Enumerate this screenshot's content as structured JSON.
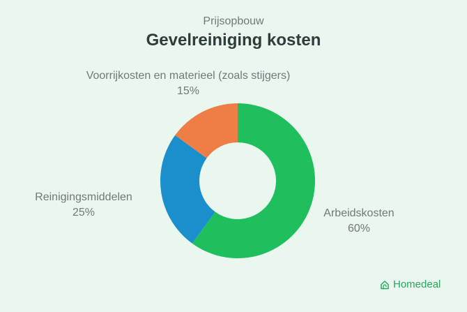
{
  "header": {
    "subtitle": "Prijsopbouw",
    "title": "Gevelreiniging kosten"
  },
  "brand": {
    "name": "Homedeal",
    "icon": "house-icon",
    "color": "#27a85a"
  },
  "chart_data": {
    "type": "pie",
    "variant": "donut",
    "title": "Gevelreiniging kosten",
    "subtitle": "Prijsopbouw",
    "categories": [
      "Arbeidskosten",
      "Reinigingsmiddelen",
      "Voorrijkosten en materieel (zoals stijgers)"
    ],
    "values": [
      60,
      25,
      15
    ],
    "labels": [
      "60%",
      "25%",
      "15%"
    ],
    "colors": [
      "#1fbf5e",
      "#1a8fcb",
      "#ef7d46"
    ],
    "legend": "none (labels beside slices)"
  }
}
